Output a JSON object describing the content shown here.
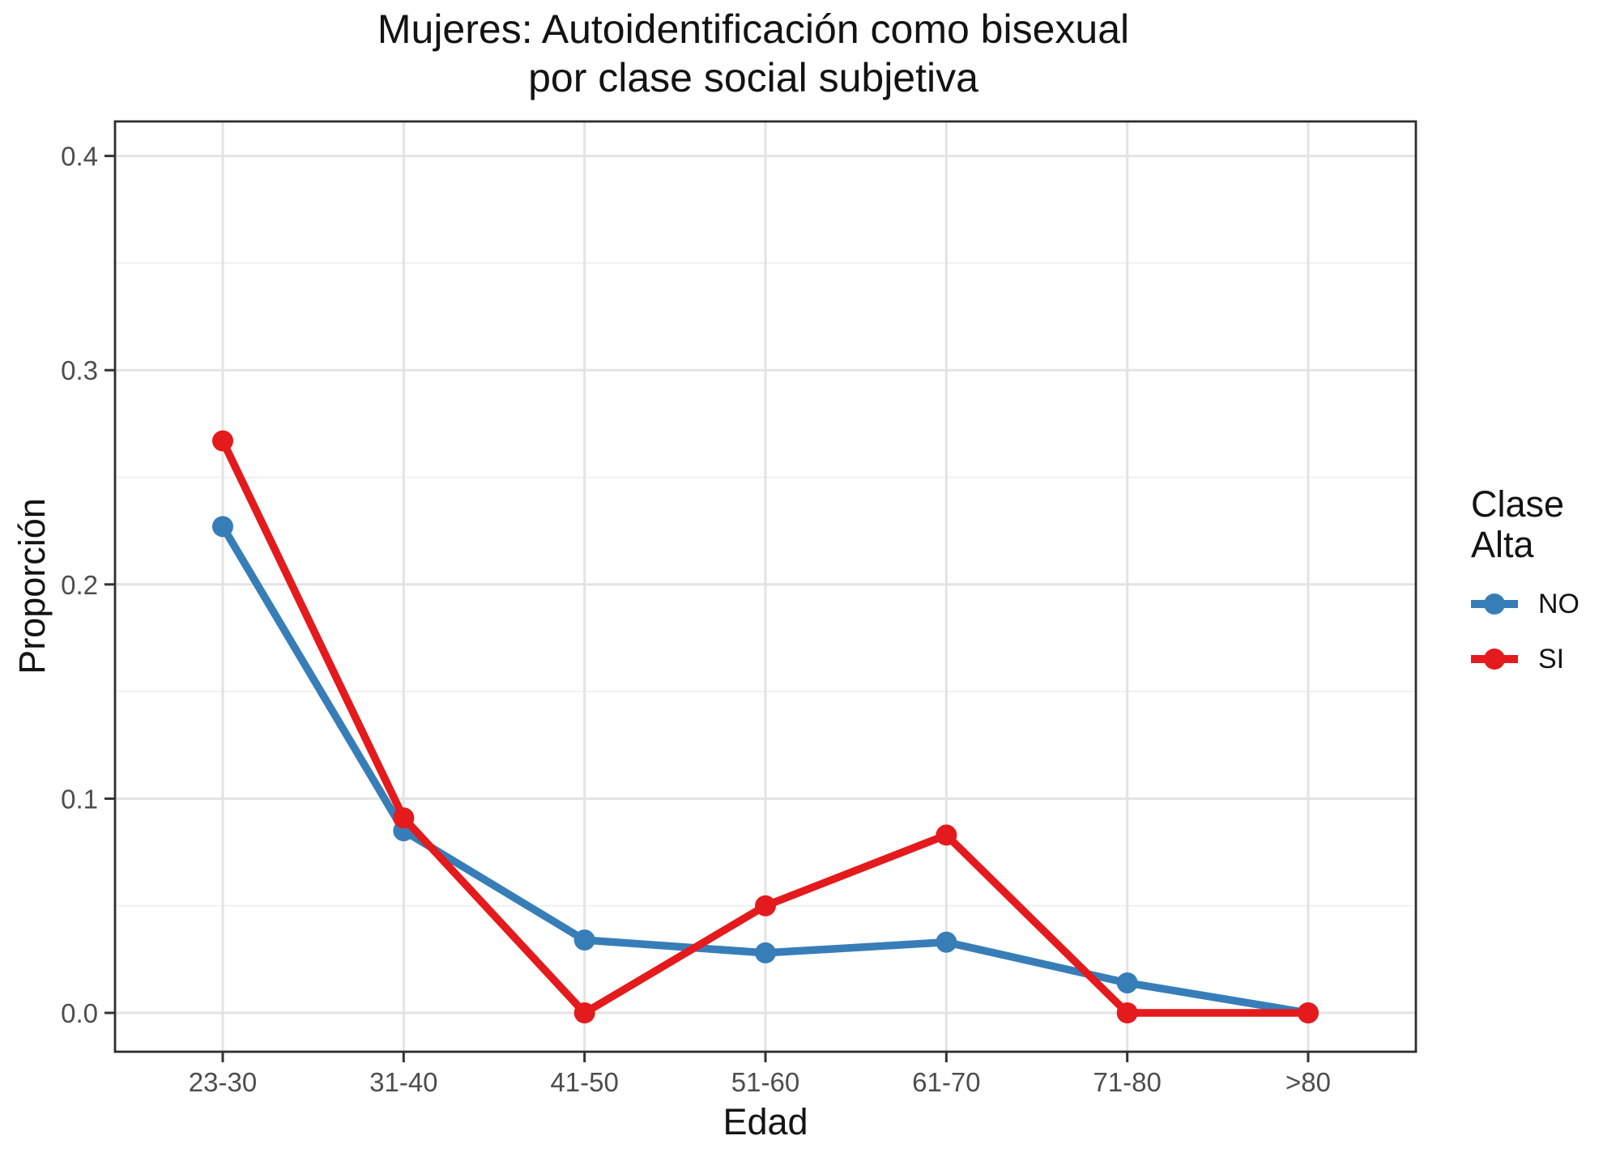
{
  "chart_data": {
    "type": "line",
    "title": "Mujeres: Autoidentificación como bisexual por clase social subjetiva",
    "title_lines": [
      "Mujeres: Autoidentificación como bisexual",
      "por clase social subjetiva"
    ],
    "xlabel": "Edad",
    "ylabel": "Proporción",
    "categories": [
      "23-30",
      "31-40",
      "41-50",
      "51-60",
      "61-70",
      "71-80",
      ">80"
    ],
    "series": [
      {
        "name": "NO",
        "color": "#377EB8",
        "values": [
          0.227,
          0.085,
          0.034,
          0.028,
          0.033,
          0.014,
          0.0
        ]
      },
      {
        "name": "SI",
        "color": "#E41A1C",
        "values": [
          0.267,
          0.091,
          0.0,
          0.05,
          0.083,
          0.0,
          0.0
        ]
      }
    ],
    "ylim": [
      0,
      0.4
    ],
    "y_tick_values": [
      0.0,
      0.1,
      0.2,
      0.3,
      0.4
    ],
    "y_tick_labels": [
      "0.0",
      "0.1",
      "0.2",
      "0.3",
      "0.4"
    ],
    "y_minor_tick_values": [
      0.05,
      0.15,
      0.25,
      0.35
    ],
    "grid": "major horizontal + minor horizontal + vertical at categories",
    "legend": {
      "title_lines": [
        "Clase",
        "Alta"
      ],
      "position": "right",
      "entries": [
        "NO",
        "SI"
      ]
    }
  },
  "style": {
    "background": "#FFFFFF",
    "grid_major_color": "#E3E3E3",
    "grid_minor_color": "#EFEFEF",
    "panel_border_color": "#2D2D2D",
    "tick_color": "#333333",
    "tick_label_color": "#4D4D4D",
    "text_color": "#131313"
  }
}
